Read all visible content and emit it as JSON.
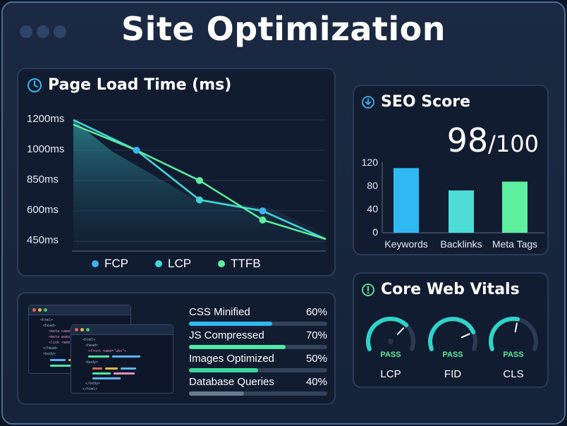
{
  "page": {
    "title": "Site Optimization"
  },
  "load_time": {
    "title": "Page Load Time (ms)",
    "chart_data": {
      "type": "line",
      "title": "Page Load Time (ms)",
      "y_ticks": [
        "1200ms",
        "1000ms",
        "850ms",
        "600ms",
        "450ms"
      ],
      "y_tick_values": [
        1200,
        1000,
        850,
        600,
        450
      ],
      "x": [
        0,
        1,
        2,
        3,
        4
      ],
      "series": [
        {
          "name": "FCP",
          "values": [
            1200,
            1000,
            690,
            600,
            460
          ],
          "color": "#3bb3f0",
          "markers": [
            false,
            true,
            false,
            true,
            false
          ]
        },
        {
          "name": "LCP",
          "values": [
            1200,
            1000,
            690,
            600,
            460
          ],
          "color": "#41d6d2",
          "markers": [
            false,
            false,
            true,
            false,
            false
          ]
        },
        {
          "name": "TTFB",
          "values": [
            1170,
            1000,
            850,
            555,
            460
          ],
          "color": "#5cef9e",
          "markers": [
            false,
            false,
            true,
            true,
            false
          ]
        }
      ],
      "legend": "bottom"
    },
    "legend": [
      "FCP",
      "LCP",
      "TTFB"
    ]
  },
  "seo": {
    "title": "SEO Score",
    "score": "98",
    "score_max": "/100",
    "chart_data": {
      "type": "bar",
      "categories": [
        "Keywords",
        "Backlinks",
        "Meta Tags"
      ],
      "values": [
        110,
        72,
        87
      ],
      "y_ticks": [
        "120",
        "80",
        "40",
        "0"
      ],
      "ylim": [
        0,
        120
      ],
      "colors": [
        "#2fb9f2",
        "#4ddbd6",
        "#5cef9e"
      ]
    }
  },
  "vitals": {
    "title": "Core Web Vitals",
    "items": [
      {
        "label": "LCP",
        "status": "PASS",
        "value": 0.7
      },
      {
        "label": "FID",
        "status": "PASS",
        "value": 0.8
      },
      {
        "label": "CLS",
        "status": "PASS",
        "value": 0.55
      }
    ]
  },
  "optimization": {
    "code_text_1": [
      "<html>",
      "<head>",
      "<meta name=",
      "<meta wema",
      "<link rmem",
      "</head>",
      "<body>"
    ],
    "code_text_2": [
      "<html>",
      "<head>",
      "<front name=\"ubo\">",
      "<body>",
      "</body>",
      "</html>"
    ],
    "metrics": [
      {
        "label": "CSS Minified",
        "percent": "60%",
        "value": 0.6,
        "color": "#2fb9f2"
      },
      {
        "label": "JS Compressed",
        "percent": "70%",
        "value": 0.7,
        "color": "#4fe7a4"
      },
      {
        "label": "Images Optimized",
        "percent": "50%",
        "value": 0.5,
        "color": "#3bd69a"
      },
      {
        "label": "Database Queries",
        "percent": "40%",
        "value": 0.4,
        "color": "#6a7a92"
      }
    ]
  },
  "colors": {
    "accent": "#5cef9e",
    "blue": "#2fb9f2",
    "teal": "#41d6d2"
  }
}
